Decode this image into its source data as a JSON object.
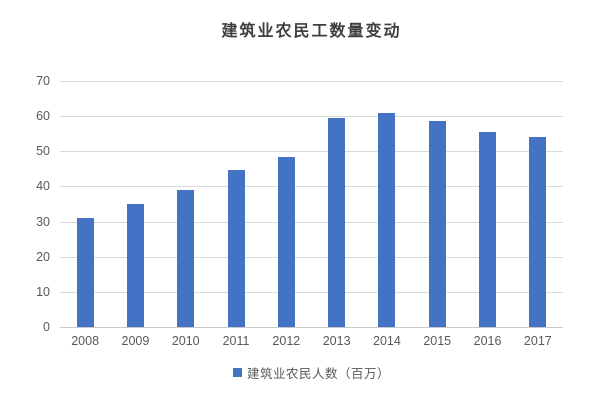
{
  "title": "建筑业农民工数量变动",
  "legend": {
    "label": "建筑业农民人数（百万）",
    "marker": "square"
  },
  "colors": {
    "bar": "#4472C4",
    "gridline": "#D9D9D9",
    "axis_line": "#C9C9C9",
    "tick_label": "#595959",
    "title": "#3F3F3F"
  },
  "chart_data": {
    "type": "bar",
    "title": "建筑业农民工数量变动",
    "categories": [
      "2008",
      "2009",
      "2010",
      "2011",
      "2012",
      "2013",
      "2014",
      "2015",
      "2016",
      "2017"
    ],
    "values": [
      31,
      35,
      39,
      44.8,
      48.4,
      59.5,
      61,
      58.5,
      55.5,
      54
    ],
    "series_name": "建筑业农民人数（百万）",
    "xlabel": "",
    "ylabel": "",
    "ylim": [
      0,
      70
    ],
    "yticks": [
      0,
      10,
      20,
      30,
      40,
      50,
      60,
      70
    ],
    "grid": true,
    "legend_position": "bottom"
  }
}
